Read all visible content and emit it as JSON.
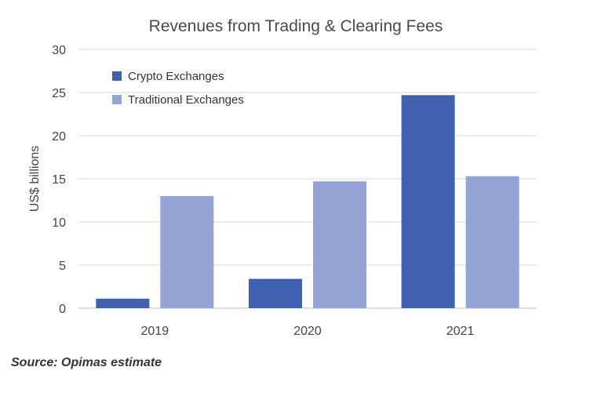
{
  "chart_data": {
    "type": "bar",
    "title": "Revenues from Trading & Clearing Fees",
    "ylabel": "US$ billions",
    "xlabel": "",
    "categories": [
      "2019",
      "2020",
      "2021"
    ],
    "ylim": [
      0,
      30
    ],
    "yticks": [
      0,
      5,
      10,
      15,
      20,
      25,
      30
    ],
    "grid": true,
    "legend_position": "top-left",
    "series": [
      {
        "name": "Crypto Exchanges",
        "values": [
          1.1,
          3.4,
          24.7
        ],
        "color": "#4060b0"
      },
      {
        "name": "Traditional Exchanges",
        "values": [
          13.0,
          14.7,
          15.3
        ],
        "color": "#94a4d6"
      }
    ]
  },
  "footer": {
    "source": "Source: Opimas estimate"
  }
}
